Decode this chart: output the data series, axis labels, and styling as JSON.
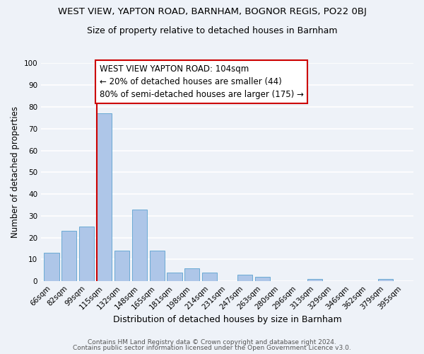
{
  "title": "WEST VIEW, YAPTON ROAD, BARNHAM, BOGNOR REGIS, PO22 0BJ",
  "subtitle": "Size of property relative to detached houses in Barnham",
  "xlabel": "Distribution of detached houses by size in Barnham",
  "ylabel": "Number of detached properties",
  "categories": [
    "66sqm",
    "82sqm",
    "99sqm",
    "115sqm",
    "132sqm",
    "148sqm",
    "165sqm",
    "181sqm",
    "198sqm",
    "214sqm",
    "231sqm",
    "247sqm",
    "263sqm",
    "280sqm",
    "296sqm",
    "313sqm",
    "329sqm",
    "346sqm",
    "362sqm",
    "379sqm",
    "395sqm"
  ],
  "values": [
    13,
    23,
    25,
    77,
    14,
    33,
    14,
    4,
    6,
    4,
    0,
    3,
    2,
    0,
    0,
    1,
    0,
    0,
    0,
    1,
    0
  ],
  "bar_color": "#aec6e8",
  "bar_edgecolor": "#6aaad4",
  "background_color": "#eef2f8",
  "grid_color": "#ffffff",
  "annotation_box_text": "WEST VIEW YAPTON ROAD: 104sqm\n← 20% of detached houses are smaller (44)\n80% of semi-detached houses are larger (175) →",
  "annotation_box_color": "#ffffff",
  "annotation_box_edgecolor": "#cc0000",
  "annotation_line_color": "#cc0000",
  "ylim": [
    0,
    100
  ],
  "footer_line1": "Contains HM Land Registry data © Crown copyright and database right 2024.",
  "footer_line2": "Contains public sector information licensed under the Open Government Licence v3.0.",
  "title_fontsize": 9.5,
  "subtitle_fontsize": 9,
  "xlabel_fontsize": 9,
  "ylabel_fontsize": 8.5,
  "tick_fontsize": 7.5,
  "annotation_fontsize": 8.5,
  "footer_fontsize": 6.5
}
